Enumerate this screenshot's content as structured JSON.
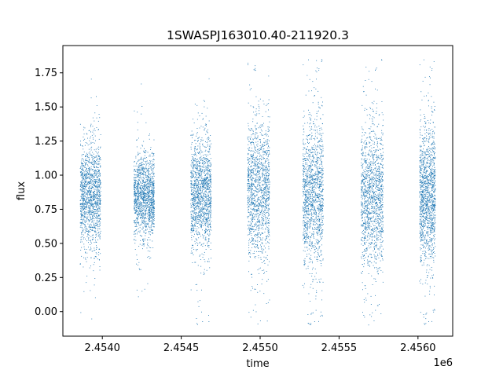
{
  "chart_data": {
    "type": "scatter",
    "title": "1SWASPJ163010.40-211920.3",
    "xlabel": "time",
    "ylabel": "flux",
    "x_offset_label": "1e6",
    "xlim": [
      2453750,
      2456220
    ],
    "ylim": [
      -0.18,
      1.95
    ],
    "x_ticks": [
      2.454,
      2.4545,
      2.455,
      2.4555,
      2.456
    ],
    "x_tick_labels": [
      "2.4540",
      "2.4545",
      "2.4550",
      "2.4555",
      "2.4560"
    ],
    "y_ticks": [
      0.0,
      0.25,
      0.5,
      0.75,
      1.0,
      1.25,
      1.5,
      1.75
    ],
    "y_tick_labels": [
      "0.00",
      "0.25",
      "0.50",
      "0.75",
      "1.00",
      "1.25",
      "1.50",
      "1.75"
    ],
    "grid": false,
    "legend": "none",
    "point_color": "#1f77b4",
    "observing_seasons": [
      {
        "start": 2453860,
        "end": 2453990,
        "median_flux": 0.85,
        "flux_low": 0.55,
        "flux_high": 1.3
      },
      {
        "start": 2454200,
        "end": 2454330,
        "median_flux": 0.85,
        "flux_low": 0.6,
        "flux_high": 1.2
      },
      {
        "start": 2454560,
        "end": 2454690,
        "median_flux": 0.85,
        "flux_low": 0.5,
        "flux_high": 1.3
      },
      {
        "start": 2454920,
        "end": 2455060,
        "median_flux": 0.9,
        "flux_low": 0.5,
        "flux_high": 1.5
      },
      {
        "start": 2455270,
        "end": 2455400,
        "median_flux": 0.85,
        "flux_low": 0.4,
        "flux_high": 1.45
      },
      {
        "start": 2455640,
        "end": 2455780,
        "median_flux": 0.85,
        "flux_low": 0.4,
        "flux_high": 1.45
      },
      {
        "start": 2456010,
        "end": 2456110,
        "median_flux": 0.85,
        "flux_low": 0.4,
        "flux_high": 1.4
      }
    ]
  }
}
